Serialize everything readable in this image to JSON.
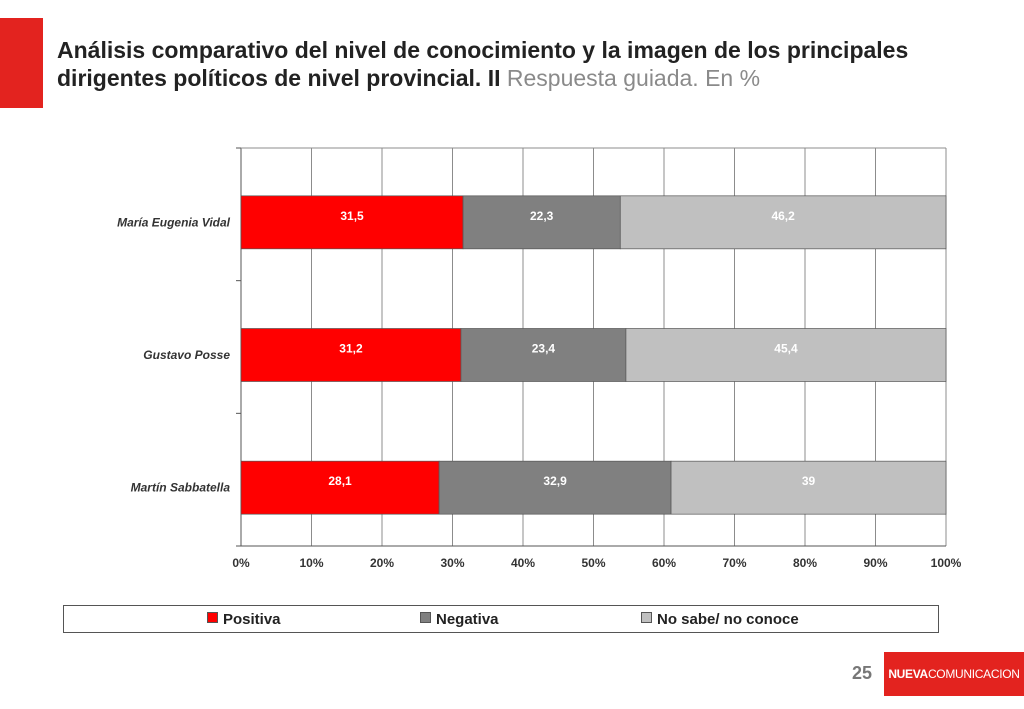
{
  "header": {
    "title_main": "Análisis comparativo del nivel de conocimiento y la imagen de los principales dirigentes políticos de nivel provincial. II",
    "title_sub": "Respuesta guiada. En %"
  },
  "footer": {
    "page_number": "25",
    "brand_bold": "NUEVA",
    "brand_rest": "COMUNICACION",
    "brand_color": "#e3231f"
  },
  "chart_data": {
    "type": "bar",
    "orientation": "horizontal",
    "stacked": "100%",
    "categories": [
      "María Eugenia Vidal",
      "Gustavo Posse",
      "Martín Sabbatella"
    ],
    "series": [
      {
        "name": "Positiva",
        "values": [
          31.5,
          31.2,
          28.1
        ],
        "labels": [
          "31,5",
          "31,2",
          "28,1"
        ],
        "color": "#ff0000"
      },
      {
        "name": "Negativa",
        "values": [
          22.3,
          23.4,
          32.9
        ],
        "labels": [
          "22,3",
          "23,4",
          "32,9"
        ],
        "color": "#808080"
      },
      {
        "name": "No sabe/ no conoce",
        "values": [
          46.2,
          45.4,
          39
        ],
        "labels": [
          "46,2",
          "45,4",
          "39"
        ],
        "color": "#c0c0c0"
      }
    ],
    "x_ticks": [
      "0%",
      "10%",
      "20%",
      "30%",
      "40%",
      "50%",
      "60%",
      "70%",
      "80%",
      "90%",
      "100%"
    ],
    "xlim": [
      0,
      100
    ],
    "grid": true,
    "legend_position": "bottom"
  }
}
